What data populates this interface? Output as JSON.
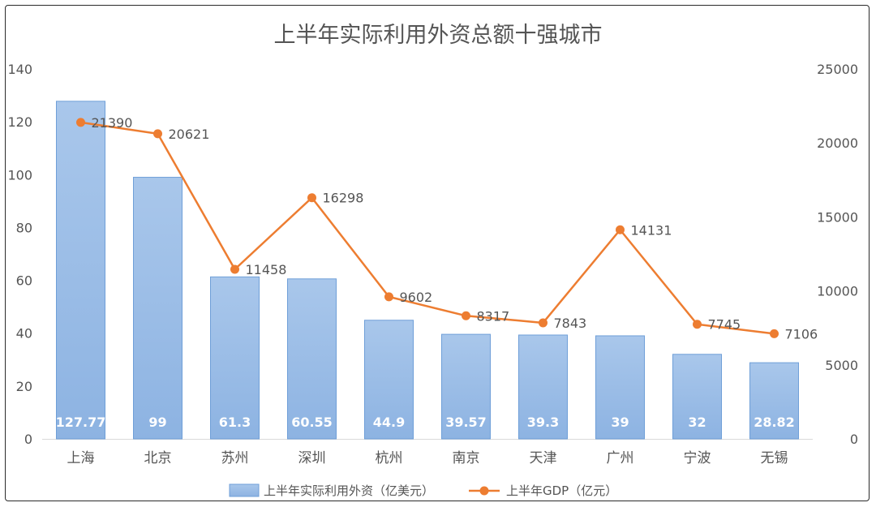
{
  "chart_data": {
    "type": "bar+line",
    "title": "上半年实际利用外资总额十强城市",
    "categories": [
      "上海",
      "北京",
      "苏州",
      "深圳",
      "杭州",
      "南京",
      "天津",
      "广州",
      "宁波",
      "无锡"
    ],
    "series": [
      {
        "name": "上半年实际利用外资（亿美元）",
        "type": "bar",
        "axis": "left",
        "values": [
          127.77,
          99,
          61.3,
          60.55,
          44.9,
          39.57,
          39.3,
          39,
          32,
          28.82
        ],
        "labels": [
          "127.77",
          "99",
          "61.3",
          "60.55",
          "44.9",
          "39.57",
          "39.3",
          "39",
          "32",
          "28.82"
        ],
        "color": "#9dbfe6"
      },
      {
        "name": "上半年GDP（亿元）",
        "type": "line",
        "axis": "right",
        "values": [
          21390,
          20621,
          11458,
          16298,
          9602,
          8317,
          7843,
          14131,
          7745,
          7106
        ],
        "labels": [
          "21390",
          "20621",
          "11458",
          "16298",
          "9602",
          "8317",
          "7843",
          "14131",
          "7745",
          "7106"
        ],
        "color": "#ed7d31"
      }
    ],
    "y_left": {
      "range": [
        0,
        140
      ],
      "ticks": [
        0,
        20,
        40,
        60,
        80,
        100,
        120,
        140
      ]
    },
    "y_right": {
      "range": [
        0,
        25000
      ],
      "ticks": [
        0,
        5000,
        10000,
        15000,
        20000,
        25000
      ]
    },
    "grid": false,
    "legend_position": "bottom"
  }
}
